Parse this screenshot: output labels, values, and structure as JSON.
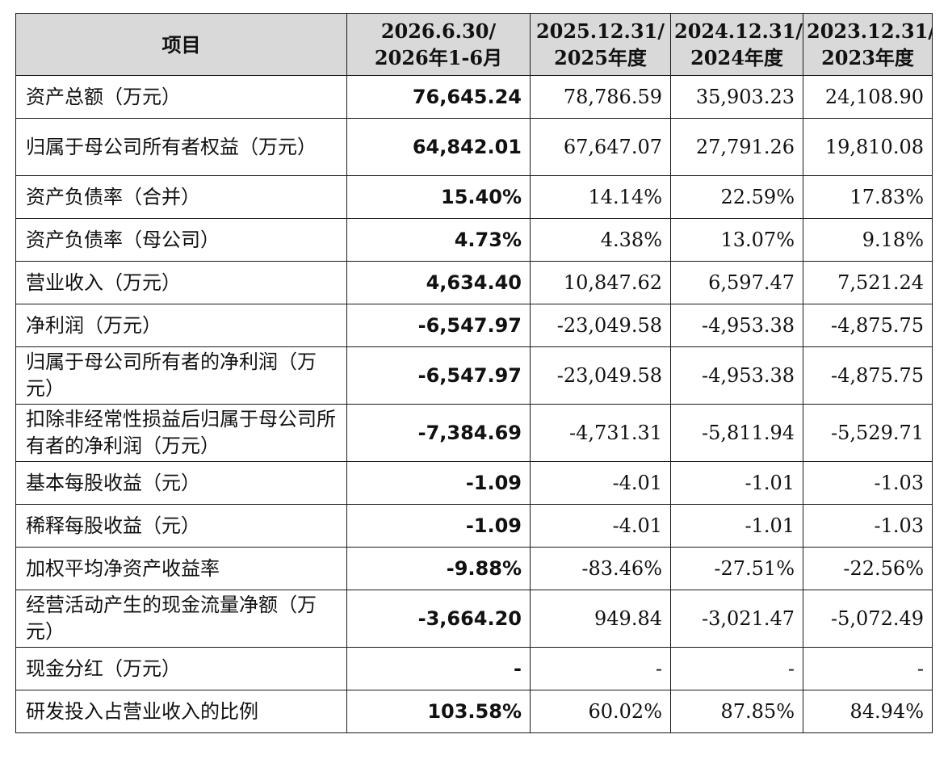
{
  "table": {
    "headers": [
      {
        "line1": "项目",
        "line2": ""
      },
      {
        "line1": "2026.6.30/",
        "line2": "2026年1-6月"
      },
      {
        "line1": "2025.12.31/",
        "line2": "2025年度"
      },
      {
        "line1": "2024.12.31/",
        "line2": "2024年度"
      },
      {
        "line1": "2023.12.31/",
        "line2": "2023年度"
      }
    ],
    "rows": [
      {
        "label": "资产总额（万元）",
        "values": [
          "76,645.24",
          "78,786.59",
          "35,903.23",
          "24,108.90"
        ]
      },
      {
        "label": "归属于母公司所有者权益（万元）",
        "values": [
          "64,842.01",
          "67,647.07",
          "27,791.26",
          "19,810.08"
        ]
      },
      {
        "label": "资产负债率（合并）",
        "values": [
          "15.40%",
          "14.14%",
          "22.59%",
          "17.83%"
        ]
      },
      {
        "label": "资产负债率（母公司）",
        "values": [
          "4.73%",
          "4.38%",
          "13.07%",
          "9.18%"
        ]
      },
      {
        "label": "营业收入（万元）",
        "values": [
          "4,634.40",
          "10,847.62",
          "6,597.47",
          "7,521.24"
        ]
      },
      {
        "label": "净利润（万元）",
        "values": [
          "-6,547.97",
          "-23,049.58",
          "-4,953.38",
          "-4,875.75"
        ]
      },
      {
        "label": "归属于母公司所有者的净利润（万元）",
        "values": [
          "-6,547.97",
          "-23,049.58",
          "-4,953.38",
          "-4,875.75"
        ]
      },
      {
        "label": "扣除非经常性损益后归属于母公司所有者的净利润（万元）",
        "values": [
          "-7,384.69",
          "-4,731.31",
          "-5,811.94",
          "-5,529.71"
        ]
      },
      {
        "label": "基本每股收益（元）",
        "values": [
          "-1.09",
          "-4.01",
          "-1.01",
          "-1.03"
        ]
      },
      {
        "label": "稀释每股收益（元）",
        "values": [
          "-1.09",
          "-4.01",
          "-1.01",
          "-1.03"
        ]
      },
      {
        "label": "加权平均净资产收益率",
        "values": [
          "-9.88%",
          "-83.46%",
          "-27.51%",
          "-22.56%"
        ]
      },
      {
        "label": "经营活动产生的现金流量净额（万元）",
        "values": [
          "-3,664.20",
          "949.84",
          "-3,021.47",
          "-5,072.49"
        ]
      },
      {
        "label": "现金分红（万元）",
        "values": [
          "-",
          "-",
          "-",
          "-"
        ]
      },
      {
        "label": "研发投入占营业收入的比例",
        "values": [
          "103.58%",
          "60.02%",
          "87.85%",
          "84.94%"
        ]
      }
    ]
  }
}
